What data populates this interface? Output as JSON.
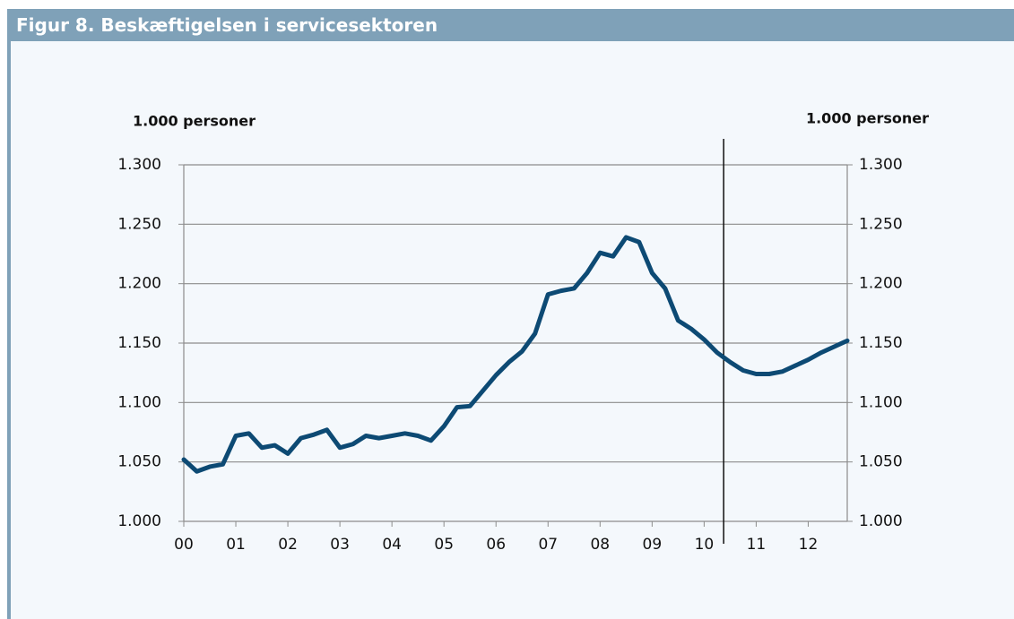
{
  "chart_data": {
    "type": "line",
    "title": "Figur 8. Beskæftigelsen i servicesektoren",
    "y_label": "1.000 personer",
    "y2_label": "1.000 personer",
    "categories": [
      "00",
      null,
      null,
      null,
      "01",
      null,
      null,
      null,
      "02",
      null,
      null,
      null,
      "03",
      null,
      null,
      null,
      "04",
      null,
      null,
      null,
      "05",
      null,
      null,
      null,
      "06",
      null,
      null,
      null,
      "07",
      null,
      null,
      null,
      "08",
      null,
      null,
      null,
      "09",
      null,
      null,
      null,
      "10",
      null,
      null,
      null,
      "11",
      null,
      null,
      null,
      "12",
      null,
      null,
      null
    ],
    "series": [
      {
        "name": "Beskæftigelsen i servicesektoren",
        "color": "#0d4a74",
        "values": [
          1052,
          1042,
          1046,
          1048,
          1072,
          1074,
          1062,
          1064,
          1057,
          1070,
          1073,
          1077,
          1062,
          1065,
          1072,
          1070,
          1072,
          1074,
          1072,
          1068,
          1080,
          1096,
          1097,
          1110,
          1123,
          1134,
          1143,
          1158,
          1191,
          1194,
          1196,
          1209,
          1226,
          1223,
          1239,
          1235,
          1209,
          1196,
          1169,
          1162,
          1153,
          1142,
          1134,
          1127,
          1124,
          1124,
          1126,
          1131,
          1136,
          1142,
          1147,
          1152
        ]
      }
    ],
    "ylim": [
      1000,
      1300
    ],
    "yticks": [
      {
        "value": 1000,
        "label": "1.000"
      },
      {
        "value": 1050,
        "label": "1.050"
      },
      {
        "value": 1100,
        "label": "1.100"
      },
      {
        "value": 1150,
        "label": "1.150"
      },
      {
        "value": 1200,
        "label": "1.200"
      },
      {
        "value": 1250,
        "label": "1.250"
      },
      {
        "value": 1300,
        "label": "1.300"
      }
    ],
    "y2lim": [
      1000,
      1300
    ],
    "y2ticks": [
      {
        "value": 1000,
        "label": "1.000"
      },
      {
        "value": 1050,
        "label": "1.050"
      },
      {
        "value": 1100,
        "label": "1.100"
      },
      {
        "value": 1150,
        "label": "1.150"
      },
      {
        "value": 1200,
        "label": "1.200"
      },
      {
        "value": 1250,
        "label": "1.250"
      },
      {
        "value": 1300,
        "label": "1.300"
      }
    ],
    "vline_x": 41.5,
    "grid": true
  }
}
